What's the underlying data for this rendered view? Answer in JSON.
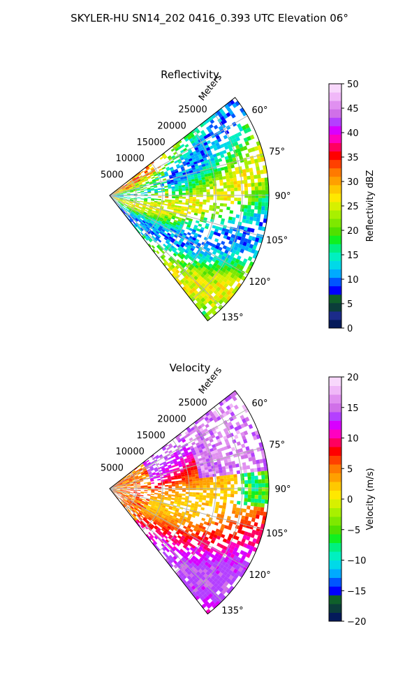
{
  "figure": {
    "title": "SKYLER-HU  SN14_202  0416_0.393 UTC Elevation 06°"
  },
  "chart_data": [
    {
      "type": "heatmap",
      "projection": "polar-sector",
      "title": "Reflectivity",
      "radial_axis_label": "Meters",
      "radial_ticks": [
        5000,
        10000,
        15000,
        20000,
        25000
      ],
      "radial_tick_labels": [
        "5000",
        "10000",
        "15000",
        "20000",
        "25000"
      ],
      "radial_range": [
        0,
        30000
      ],
      "azimuth_range_deg": [
        52,
        142
      ],
      "azimuth_ticks": [
        60,
        75,
        90,
        105,
        120,
        135
      ],
      "azimuth_tick_labels": [
        "60°",
        "75°",
        "90°",
        "105°",
        "120°",
        "135°"
      ],
      "grid": true,
      "colorbar": {
        "label": "Reflectivity dBZ",
        "range": [
          0,
          50
        ],
        "ticks": [
          0,
          5,
          10,
          15,
          20,
          25,
          30,
          35,
          40,
          45,
          50
        ],
        "tick_labels": [
          "0",
          "5",
          "10",
          "15",
          "20",
          "25",
          "30",
          "35",
          "40",
          "45",
          "50"
        ],
        "colors": [
          "#041a5a",
          "#1b2b8a",
          "#0b3d3a",
          "#0f5f2a",
          "#0000ff",
          "#0055ff",
          "#00aaff",
          "#00d9e8",
          "#00f0c0",
          "#00f080",
          "#10f020",
          "#50e000",
          "#7ee800",
          "#a8f000",
          "#d7f000",
          "#ffe800",
          "#ffc800",
          "#ffa000",
          "#ff7a00",
          "#ff4000",
          "#ff0000",
          "#ff0060",
          "#ff00c0",
          "#d800ff",
          "#b440ff",
          "#d070e8",
          "#e090f0",
          "#f0b8f8",
          "#f8d8fc"
        ]
      }
    },
    {
      "type": "heatmap",
      "projection": "polar-sector",
      "title": "Velocity",
      "radial_axis_label": "Meters",
      "radial_ticks": [
        5000,
        10000,
        15000,
        20000,
        25000
      ],
      "radial_tick_labels": [
        "5000",
        "10000",
        "15000",
        "20000",
        "25000"
      ],
      "radial_range": [
        0,
        30000
      ],
      "azimuth_range_deg": [
        52,
        142
      ],
      "azimuth_ticks": [
        60,
        75,
        90,
        105,
        120,
        135
      ],
      "azimuth_tick_labels": [
        "60°",
        "75°",
        "90°",
        "105°",
        "120°",
        "135°"
      ],
      "grid": true,
      "colorbar": {
        "label": "Velocity (m/s)",
        "range": [
          -20,
          20
        ],
        "ticks": [
          -20,
          -15,
          -10,
          -5,
          0,
          5,
          10,
          15,
          20
        ],
        "tick_labels": [
          "−20",
          "−15",
          "−10",
          "−5",
          "0",
          "5",
          "10",
          "15",
          "20"
        ],
        "colors": [
          "#041a5a",
          "#0b3d3a",
          "#0f5f2a",
          "#0000ff",
          "#0055ff",
          "#00aaff",
          "#00d9e8",
          "#00f0c0",
          "#00f080",
          "#10f020",
          "#50e000",
          "#7ee800",
          "#a8f000",
          "#d7f000",
          "#ffe800",
          "#ffc800",
          "#ffa000",
          "#ff7a00",
          "#ff4000",
          "#ff0000",
          "#ff0060",
          "#ff00c0",
          "#d800ff",
          "#b440ff",
          "#d070e8",
          "#e090f0",
          "#f0b8f8",
          "#f8d8fc"
        ]
      }
    }
  ]
}
